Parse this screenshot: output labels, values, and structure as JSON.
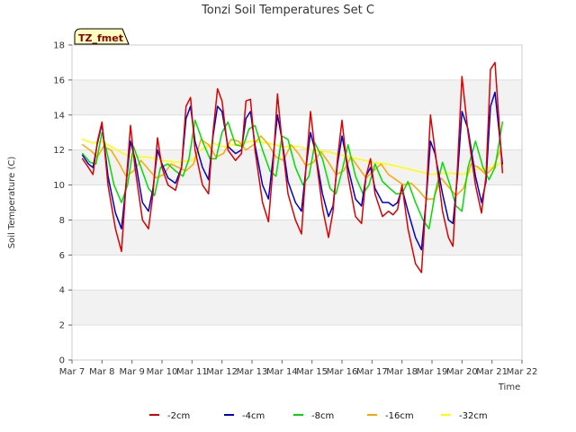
{
  "chart_data": {
    "type": "line",
    "title": "Tonzi Soil Temperatures Set C",
    "xlabel": "Time",
    "ylabel": "Soil Temperature (C)",
    "site_label": "TZ_fmet",
    "ylim": [
      0,
      18
    ],
    "yticks": [
      "0",
      "2",
      "4",
      "6",
      "8",
      "10",
      "12",
      "14",
      "16",
      "18"
    ],
    "xlim": [
      7,
      22
    ],
    "xticks": [
      "Mar 7",
      "Mar 8",
      "Mar 9",
      "Mar 10",
      "Mar 11",
      "Mar 12",
      "Mar 13",
      "Mar 14",
      "Mar 15",
      "Mar 16",
      "Mar 17",
      "Mar 18",
      "Mar 19",
      "Mar 20",
      "Mar 21",
      "Mar 22"
    ],
    "grid": true,
    "legend_position": "bottom",
    "series": [
      {
        "name": "-2cm",
        "color": "#dd0000",
        "x": [
          7.35,
          7.55,
          7.7,
          7.85,
          8.0,
          8.2,
          8.45,
          8.65,
          8.8,
          8.95,
          9.1,
          9.35,
          9.55,
          9.7,
          9.85,
          10.0,
          10.2,
          10.45,
          10.65,
          10.8,
          10.95,
          11.1,
          11.35,
          11.55,
          11.7,
          11.85,
          12.0,
          12.2,
          12.45,
          12.65,
          12.8,
          12.95,
          13.1,
          13.35,
          13.55,
          13.7,
          13.85,
          14.0,
          14.2,
          14.45,
          14.65,
          14.8,
          14.95,
          15.1,
          15.35,
          15.55,
          15.7,
          15.85,
          16.0,
          16.2,
          16.45,
          16.65,
          16.8,
          16.95,
          17.1,
          17.35,
          17.55,
          17.7,
          17.85,
          18.0,
          18.2,
          18.45,
          18.65,
          18.8,
          18.95,
          19.1,
          19.35,
          19.55,
          19.7,
          19.85,
          20.0,
          20.2,
          20.45,
          20.65,
          20.8,
          20.95,
          21.1,
          21.35
        ],
        "y": [
          11.5,
          11.0,
          10.6,
          12.5,
          13.6,
          10.0,
          7.5,
          6.2,
          10.0,
          13.4,
          11.0,
          8.0,
          7.5,
          9.5,
          12.7,
          11.0,
          10.0,
          9.7,
          11.0,
          14.5,
          15.0,
          12.0,
          10.0,
          9.5,
          13.0,
          15.5,
          14.8,
          12.0,
          11.4,
          11.8,
          14.8,
          14.9,
          12.0,
          9.0,
          7.9,
          11.0,
          15.2,
          12.5,
          9.5,
          8.0,
          7.2,
          11.0,
          14.2,
          12.0,
          8.7,
          7.0,
          8.5,
          11.5,
          13.7,
          10.5,
          8.2,
          7.8,
          10.5,
          11.5,
          9.5,
          8.2,
          8.5,
          8.3,
          8.6,
          10.0,
          7.5,
          5.5,
          5.0,
          9.0,
          14.0,
          12.0,
          8.5,
          7.0,
          6.5,
          11.0,
          16.2,
          13.0,
          10.0,
          8.4,
          10.5,
          16.6,
          17.0,
          10.7
        ]
      },
      {
        "name": "-4cm",
        "color": "#0000cc",
        "x": [
          7.35,
          7.55,
          7.7,
          7.85,
          8.0,
          8.2,
          8.45,
          8.65,
          8.8,
          8.95,
          9.1,
          9.35,
          9.55,
          9.7,
          9.85,
          10.0,
          10.2,
          10.45,
          10.65,
          10.8,
          10.95,
          11.1,
          11.35,
          11.55,
          11.7,
          11.85,
          12.0,
          12.2,
          12.45,
          12.65,
          12.8,
          12.95,
          13.1,
          13.35,
          13.55,
          13.7,
          13.85,
          14.0,
          14.2,
          14.45,
          14.65,
          14.8,
          14.95,
          15.1,
          15.35,
          15.55,
          15.7,
          15.85,
          16.0,
          16.2,
          16.45,
          16.65,
          16.8,
          16.95,
          17.1,
          17.35,
          17.55,
          17.7,
          17.85,
          18.0,
          18.2,
          18.45,
          18.65,
          18.8,
          18.95,
          19.1,
          19.35,
          19.55,
          19.7,
          19.85,
          20.0,
          20.2,
          20.45,
          20.65,
          20.8,
          20.95,
          21.1,
          21.35
        ],
        "y": [
          11.7,
          11.2,
          11.0,
          12.4,
          13.5,
          10.5,
          8.4,
          7.5,
          10.0,
          12.5,
          11.5,
          9.0,
          8.5,
          9.8,
          12.0,
          11.2,
          10.4,
          10.1,
          11.0,
          13.8,
          14.5,
          12.5,
          11.0,
          10.3,
          12.8,
          14.5,
          14.2,
          12.2,
          11.8,
          12.0,
          13.8,
          14.2,
          12.3,
          10.0,
          9.2,
          11.5,
          14.0,
          12.6,
          10.2,
          9.0,
          8.5,
          11.0,
          13.0,
          12.0,
          9.5,
          8.2,
          8.8,
          11.2,
          12.8,
          11.0,
          9.2,
          8.8,
          10.5,
          11.0,
          9.8,
          9.0,
          9.0,
          8.8,
          9.0,
          9.8,
          8.5,
          7.0,
          6.3,
          9.0,
          12.5,
          11.8,
          9.5,
          8.0,
          7.8,
          10.5,
          14.2,
          13.2,
          10.5,
          9.0,
          10.2,
          14.5,
          15.3,
          11.2
        ]
      },
      {
        "name": "-8cm",
        "color": "#00dd00",
        "x": [
          7.35,
          7.6,
          7.8,
          8.0,
          8.15,
          8.4,
          8.65,
          8.85,
          9.05,
          9.3,
          9.55,
          9.75,
          9.95,
          10.2,
          10.45,
          10.7,
          10.9,
          11.1,
          11.35,
          11.6,
          11.8,
          12.0,
          12.2,
          12.45,
          12.7,
          12.9,
          13.1,
          13.35,
          13.6,
          13.8,
          14.0,
          14.2,
          14.45,
          14.7,
          14.9,
          15.1,
          15.35,
          15.6,
          15.8,
          16.0,
          16.2,
          16.45,
          16.7,
          16.9,
          17.1,
          17.35,
          17.6,
          17.8,
          18.0,
          18.2,
          18.45,
          18.7,
          18.9,
          19.1,
          19.35,
          19.6,
          19.8,
          20.0,
          20.2,
          20.45,
          20.7,
          20.9,
          21.1,
          21.35
        ],
        "y": [
          11.8,
          11.3,
          11.2,
          13.0,
          12.0,
          10.0,
          9.0,
          10.0,
          12.2,
          11.0,
          9.8,
          9.4,
          11.0,
          11.2,
          10.8,
          10.5,
          11.5,
          13.7,
          12.5,
          11.5,
          11.5,
          13.0,
          13.6,
          12.3,
          12.2,
          13.2,
          13.4,
          12.0,
          10.8,
          10.5,
          12.8,
          12.6,
          11.0,
          10.0,
          10.5,
          12.4,
          11.5,
          9.8,
          9.5,
          10.8,
          12.3,
          10.5,
          9.5,
          10.0,
          11.2,
          10.2,
          9.8,
          9.5,
          9.5,
          10.2,
          9.0,
          8.0,
          7.5,
          9.5,
          11.3,
          10.0,
          8.8,
          8.5,
          11.0,
          12.5,
          11.0,
          10.3,
          11.0,
          13.6
        ]
      },
      {
        "name": "-16cm",
        "color": "#ffa500",
        "x": [
          7.35,
          7.6,
          7.85,
          8.05,
          8.3,
          8.55,
          8.8,
          9.05,
          9.3,
          9.55,
          9.8,
          10.05,
          10.3,
          10.55,
          10.8,
          11.05,
          11.3,
          11.55,
          11.8,
          12.05,
          12.3,
          12.55,
          12.8,
          13.05,
          13.3,
          13.55,
          13.8,
          14.05,
          14.3,
          14.55,
          14.8,
          15.05,
          15.3,
          15.55,
          15.8,
          16.05,
          16.3,
          16.55,
          16.8,
          17.05,
          17.3,
          17.55,
          17.8,
          18.05,
          18.3,
          18.55,
          18.8,
          19.05,
          19.3,
          19.55,
          19.8,
          20.05,
          20.3,
          20.55,
          20.8,
          21.05,
          21.3
        ],
        "y": [
          12.3,
          12.0,
          11.6,
          12.2,
          12.0,
          11.3,
          10.5,
          10.8,
          11.4,
          10.9,
          10.4,
          10.6,
          11.2,
          11.0,
          10.8,
          11.2,
          12.6,
          12.3,
          11.6,
          11.8,
          12.6,
          12.5,
          12.0,
          12.3,
          12.8,
          12.3,
          11.6,
          11.4,
          12.3,
          11.8,
          11.1,
          11.3,
          11.9,
          11.3,
          10.6,
          10.8,
          11.6,
          11.0,
          10.4,
          10.8,
          11.2,
          10.6,
          10.3,
          10.0,
          10.1,
          9.7,
          9.2,
          9.2,
          10.4,
          9.9,
          9.4,
          9.8,
          11.2,
          11.0,
          10.6,
          11.0,
          12.1
        ]
      },
      {
        "name": "-32cm",
        "color": "#ffff00",
        "x": [
          7.35,
          7.7,
          8.0,
          8.3,
          8.7,
          9.0,
          9.5,
          10.0,
          10.5,
          11.0,
          11.3,
          11.7,
          12.0,
          12.5,
          13.0,
          13.5,
          14.0,
          14.5,
          15.0,
          15.5,
          16.0,
          16.5,
          17.0,
          17.5,
          18.0,
          18.5,
          19.0,
          19.5,
          20.0,
          20.5,
          21.0,
          21.35
        ],
        "y": [
          12.6,
          12.4,
          12.5,
          12.2,
          11.8,
          11.6,
          11.6,
          11.4,
          11.3,
          11.4,
          12.0,
          12.4,
          12.2,
          12.3,
          12.5,
          12.4,
          12.2,
          12.2,
          12.0,
          11.9,
          11.7,
          11.5,
          11.3,
          11.2,
          11.0,
          10.8,
          10.6,
          10.7,
          10.6,
          10.9,
          11.0,
          11.3
        ]
      }
    ]
  }
}
